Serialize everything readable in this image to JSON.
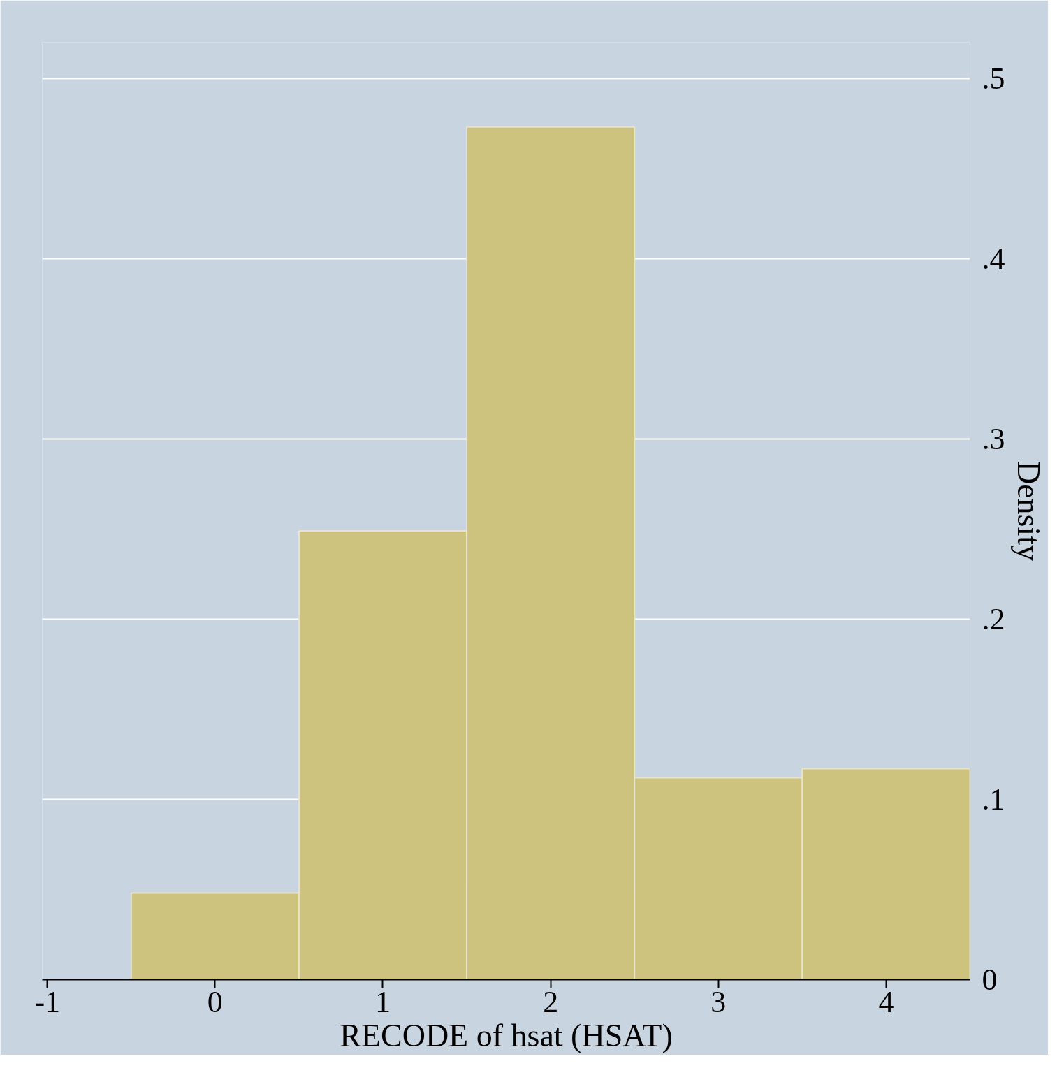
{
  "chart_data": {
    "type": "histogram",
    "xlabel": "RECODE of hsat (HSAT)",
    "ylabel": "Density",
    "bins": [
      -0.5,
      0.5,
      1.5,
      2.5,
      3.5,
      4.5
    ],
    "values": [
      0.048,
      0.249,
      0.473,
      0.112,
      0.117
    ],
    "color": "#cdc27e",
    "xlim": [
      -1.03,
      4.5
    ],
    "xticks": [
      {
        "value": -1,
        "label": "-1"
      },
      0,
      1,
      2,
      3,
      4
    ],
    "ylim": [
      0,
      0.52
    ],
    "yticks": [
      0,
      {
        "value": 0.1,
        "label": ".1"
      },
      {
        "value": 0.2,
        "label": ".2"
      },
      {
        "value": 0.3,
        "label": ".3"
      },
      {
        "value": 0.4,
        "label": ".4"
      },
      {
        "value": 0.5,
        "label": ".5"
      }
    ],
    "grid": "y"
  }
}
